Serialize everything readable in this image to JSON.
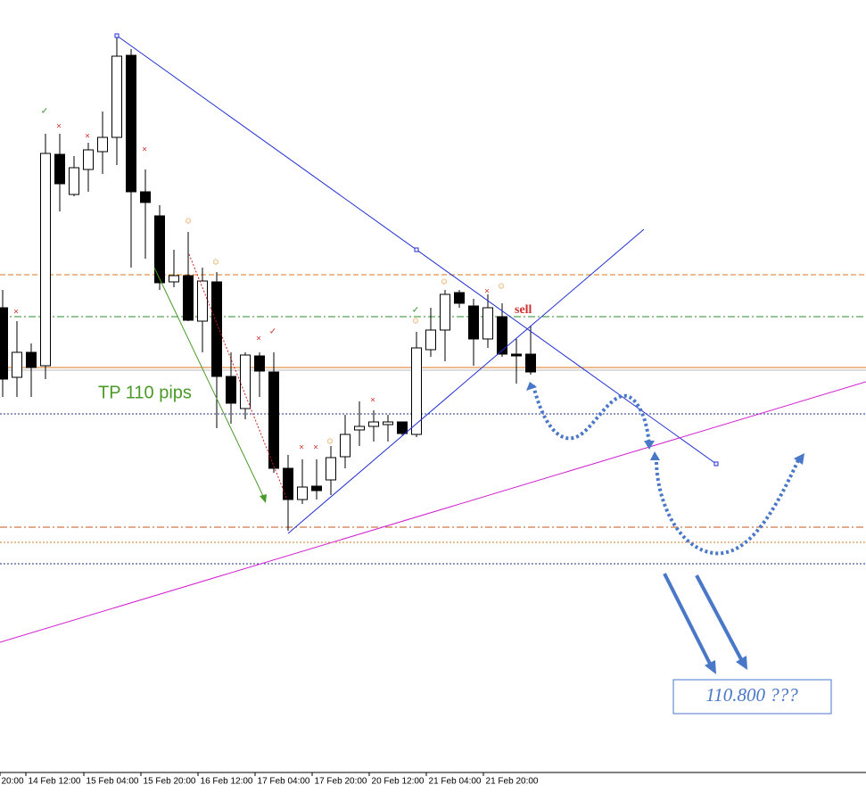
{
  "chart_window": {
    "x_axis_labels": [
      "20:00",
      "14 Feb 12:00",
      "15 Feb 04:00",
      "15 Feb 20:00",
      "16 Feb 12:00",
      "17 Feb 04:00",
      "17 Feb 20:00",
      "20 Feb 12:00",
      "21 Feb 04:00",
      "21 Feb 20:00"
    ],
    "annotations": {
      "take_profit": "TP 110 pips",
      "signal": "sell",
      "target": "110.800 ???"
    },
    "markers": [
      "×",
      "✓",
      "×",
      "×",
      "×",
      "☺",
      "☺",
      "×",
      "✓",
      "×",
      "×",
      "☺",
      "×",
      "☺",
      "✓",
      "☺",
      "×",
      "☺"
    ]
  }
}
